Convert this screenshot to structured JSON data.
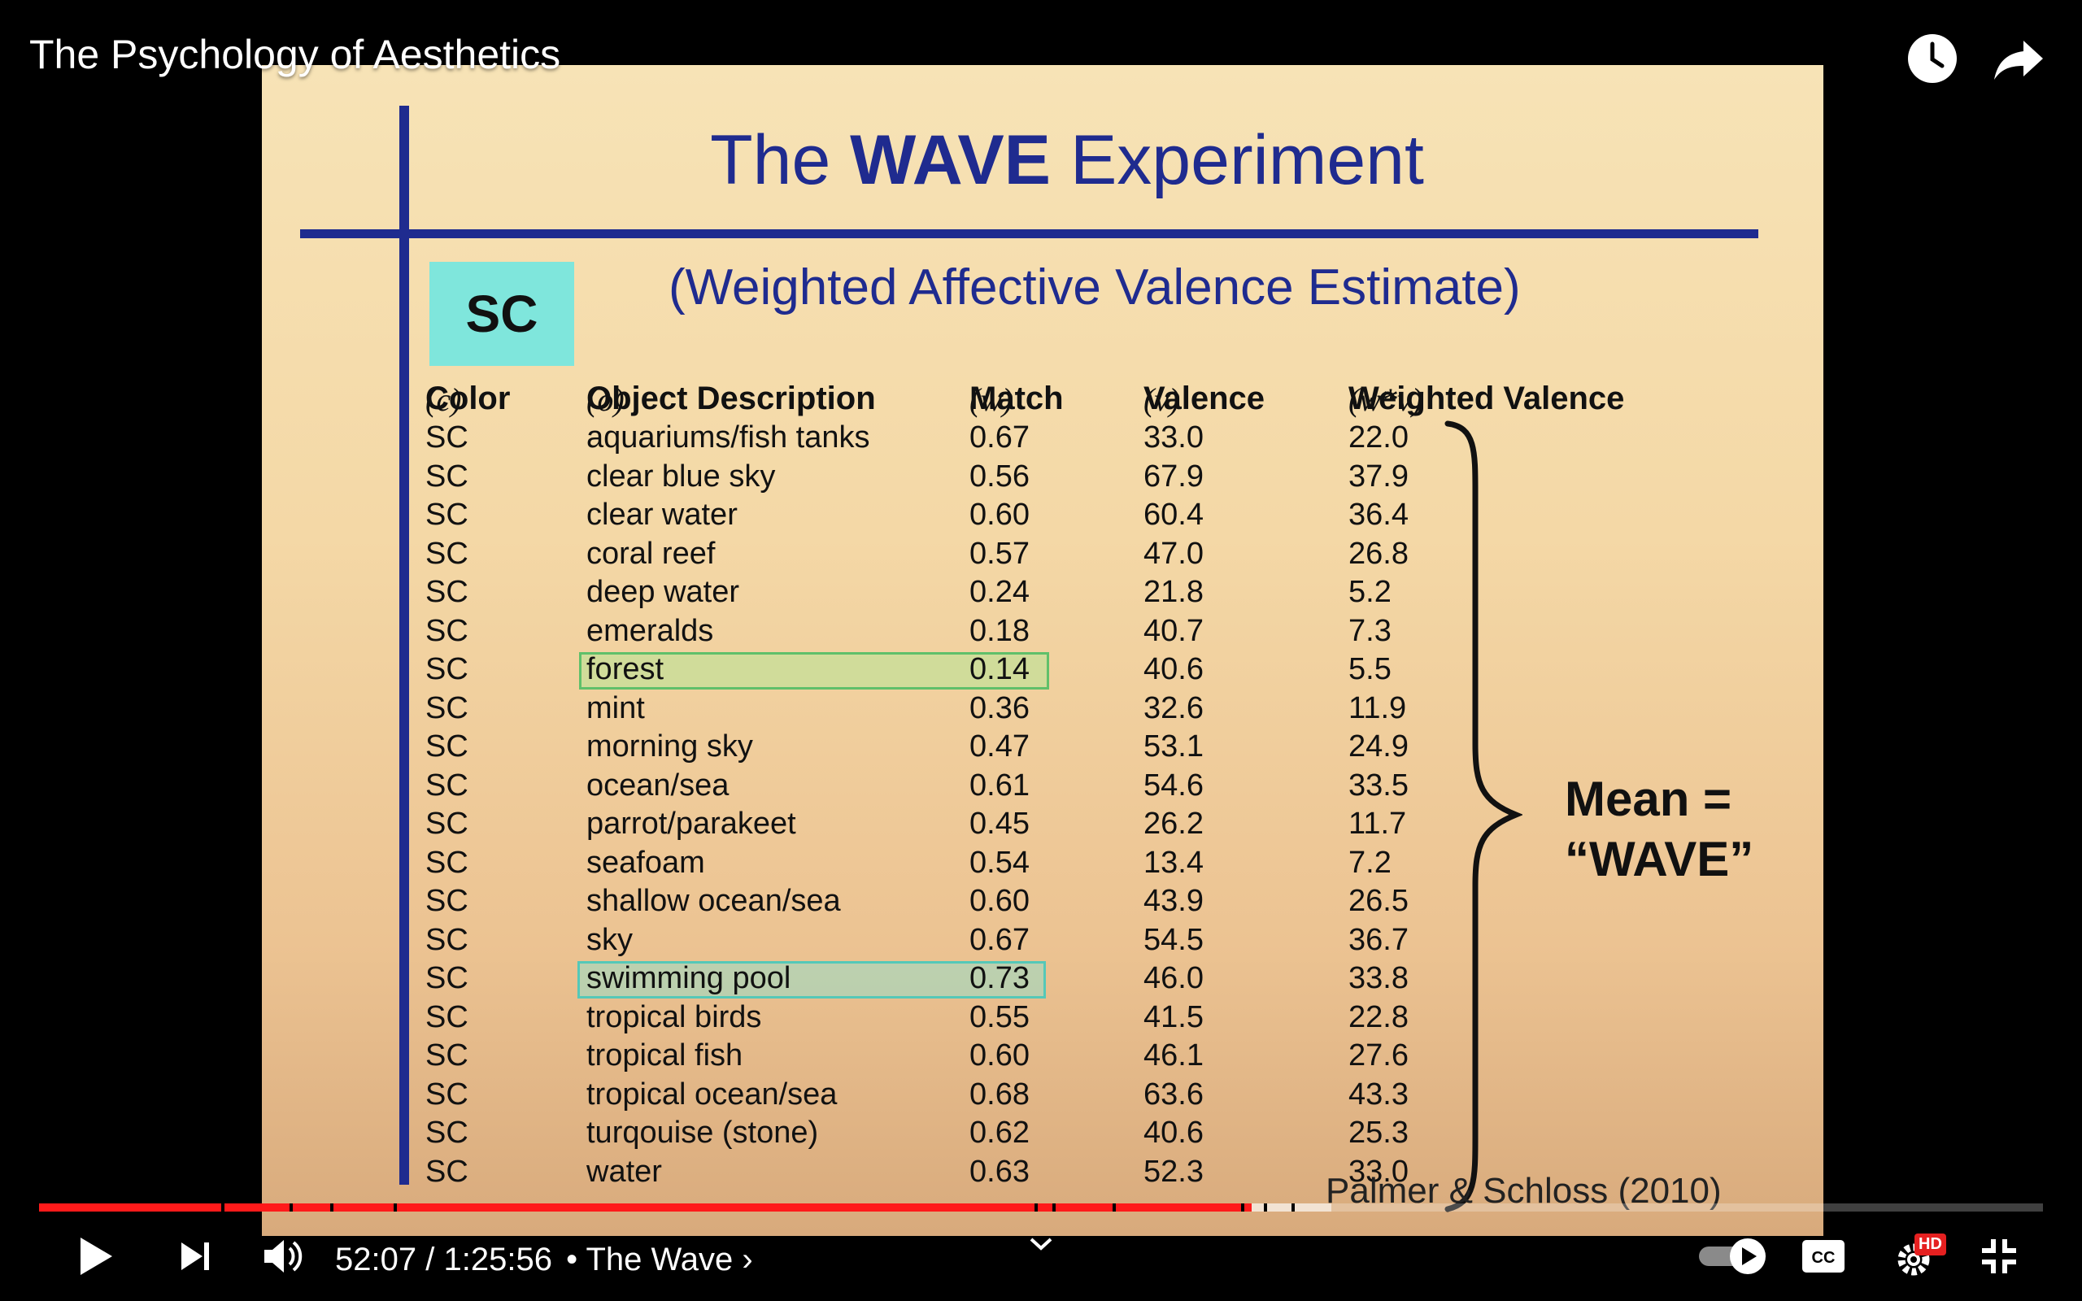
{
  "player": {
    "video_title": "The Psychology of Aesthetics",
    "current_time": "52:07",
    "time_separator": "/",
    "duration": "1:25:56",
    "chapter_separator": "•",
    "chapter": "The Wave",
    "chapter_chevron": "›",
    "progress_played_fraction": 0.605,
    "progress_buffered_fraction": 0.645,
    "hd_badge": "HD",
    "accent_color": "#ff1a1a",
    "icons": [
      "watch-later-icon",
      "share-icon",
      "play-icon",
      "next-icon",
      "volume-icon",
      "expand-chevron-icon",
      "autoplay-toggle-icon",
      "captions-icon",
      "settings-icon",
      "exit-fullscreen-icon"
    ]
  },
  "slide": {
    "title_pre": "The ",
    "title_bold": "WAVE",
    "title_post": " Experiment",
    "subtitle": "(Weighted Affective Valence Estimate)",
    "color_box_label": "SC",
    "color_box_color": "#7fe6dc",
    "accent_color": "#1f2b8f",
    "headers": {
      "color": "Color",
      "color_sym": "(c)",
      "object": "Object Description",
      "object_sym": "(o)",
      "match": "Match",
      "match_sym": "(w)",
      "valence": "Valence",
      "valence_sym": "(v)",
      "weighted": "Weighted Valence",
      "weighted_sym": "(w*v)"
    },
    "rows": [
      {
        "color": "SC",
        "object": "aquariums/fish tanks",
        "match": "0.67",
        "valence": "33.0",
        "weighted": "22.0"
      },
      {
        "color": "SC",
        "object": "clear blue sky",
        "match": "0.56",
        "valence": "67.9",
        "weighted": "37.9"
      },
      {
        "color": "SC",
        "object": "clear water",
        "match": "0.60",
        "valence": "60.4",
        "weighted": "36.4"
      },
      {
        "color": "SC",
        "object": "coral reef",
        "match": "0.57",
        "valence": "47.0",
        "weighted": "26.8"
      },
      {
        "color": "SC",
        "object": "deep water",
        "match": "0.24",
        "valence": "21.8",
        "weighted": "5.2"
      },
      {
        "color": "SC",
        "object": "emeralds",
        "match": "0.18",
        "valence": "40.7",
        "weighted": "7.3"
      },
      {
        "color": "SC",
        "object": "forest",
        "match": "0.14",
        "valence": "40.6",
        "weighted": "5.5",
        "highlight": "green"
      },
      {
        "color": "SC",
        "object": "mint",
        "match": "0.36",
        "valence": "32.6",
        "weighted": "11.9"
      },
      {
        "color": "SC",
        "object": "morning sky",
        "match": "0.47",
        "valence": "53.1",
        "weighted": "24.9"
      },
      {
        "color": "SC",
        "object": "ocean/sea",
        "match": "0.61",
        "valence": "54.6",
        "weighted": "33.5"
      },
      {
        "color": "SC",
        "object": "parrot/parakeet",
        "match": "0.45",
        "valence": "26.2",
        "weighted": "11.7"
      },
      {
        "color": "SC",
        "object": "seafoam",
        "match": "0.54",
        "valence": "13.4",
        "weighted": "7.2"
      },
      {
        "color": "SC",
        "object": "shallow ocean/sea",
        "match": "0.60",
        "valence": "43.9",
        "weighted": "26.5"
      },
      {
        "color": "SC",
        "object": "sky",
        "match": "0.67",
        "valence": "54.5",
        "weighted": "36.7"
      },
      {
        "color": "SC",
        "object": "swimming pool",
        "match": "0.73",
        "valence": "46.0",
        "weighted": "33.8",
        "highlight": "teal"
      },
      {
        "color": "SC",
        "object": "tropical birds",
        "match": "0.55",
        "valence": "41.5",
        "weighted": "22.8"
      },
      {
        "color": "SC",
        "object": "tropical fish",
        "match": "0.60",
        "valence": "46.1",
        "weighted": "27.6"
      },
      {
        "color": "SC",
        "object": "tropical ocean/sea",
        "match": "0.68",
        "valence": "63.6",
        "weighted": "43.3"
      },
      {
        "color": "SC",
        "object": "turqouise (stone)",
        "match": "0.62",
        "valence": "40.6",
        "weighted": "25.3"
      },
      {
        "color": "SC",
        "object": "water",
        "match": "0.63",
        "valence": "52.3",
        "weighted": "33.0"
      }
    ],
    "mean_label_line1": "Mean =",
    "mean_label_line2": "“WAVE”",
    "citation": "Palmer & Schloss (2010)"
  }
}
